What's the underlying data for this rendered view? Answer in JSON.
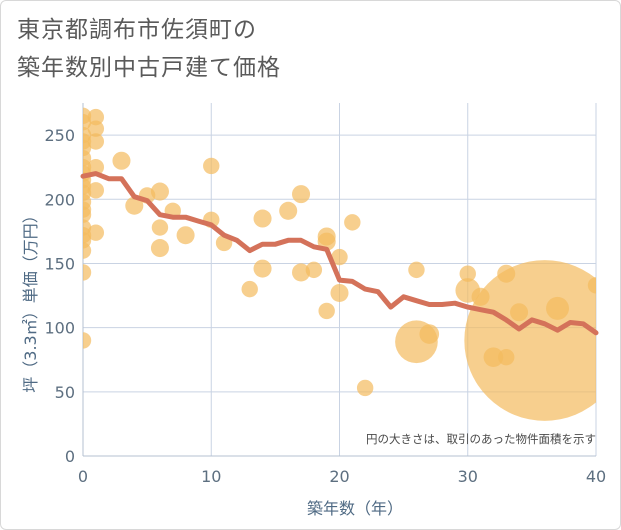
{
  "title_line1": "東京都調布市佐須町の",
  "title_line2": "築年数別中古戸建て価格",
  "chart_data": {
    "type": "scatter",
    "title": "東京都調布市佐須町の築年数別中古戸建て価格",
    "xlabel": "築年数（年）",
    "ylabel": "坪（3.3㎡）単価（万円）",
    "xlim": [
      0,
      40
    ],
    "ylim": [
      0,
      275
    ],
    "xticks": [
      0,
      10,
      20,
      30,
      40
    ],
    "yticks": [
      0,
      50,
      100,
      150,
      200,
      250
    ],
    "note": "円の大きさは、取引のあった物件面積を示す",
    "colors": {
      "bubble": "#f3bb5e",
      "line": "#d4725a",
      "grid": "#c9d3e3"
    },
    "scatter": [
      {
        "x": 0,
        "y": 265,
        "s": 1
      },
      {
        "x": 0,
        "y": 260,
        "s": 1
      },
      {
        "x": 0,
        "y": 250,
        "s": 1
      },
      {
        "x": 0,
        "y": 245,
        "s": 1
      },
      {
        "x": 0,
        "y": 240,
        "s": 1
      },
      {
        "x": 0,
        "y": 232,
        "s": 1
      },
      {
        "x": 0,
        "y": 225,
        "s": 1
      },
      {
        "x": 0,
        "y": 220,
        "s": 1
      },
      {
        "x": 0,
        "y": 215,
        "s": 1
      },
      {
        "x": 0,
        "y": 210,
        "s": 1
      },
      {
        "x": 0,
        "y": 205,
        "s": 1
      },
      {
        "x": 0,
        "y": 198,
        "s": 1
      },
      {
        "x": 0,
        "y": 192,
        "s": 1
      },
      {
        "x": 0,
        "y": 188,
        "s": 1
      },
      {
        "x": 0,
        "y": 178,
        "s": 1
      },
      {
        "x": 0,
        "y": 172,
        "s": 1
      },
      {
        "x": 0,
        "y": 168,
        "s": 1
      },
      {
        "x": 0,
        "y": 160,
        "s": 1
      },
      {
        "x": 0,
        "y": 143,
        "s": 1
      },
      {
        "x": 0,
        "y": 90,
        "s": 1
      },
      {
        "x": 1,
        "y": 264,
        "s": 1
      },
      {
        "x": 1,
        "y": 255,
        "s": 1
      },
      {
        "x": 1,
        "y": 245,
        "s": 1
      },
      {
        "x": 1,
        "y": 225,
        "s": 1
      },
      {
        "x": 1,
        "y": 207,
        "s": 1
      },
      {
        "x": 1,
        "y": 174,
        "s": 1
      },
      {
        "x": 3,
        "y": 230,
        "s": 1.1
      },
      {
        "x": 4,
        "y": 195,
        "s": 1.1
      },
      {
        "x": 5,
        "y": 203,
        "s": 1
      },
      {
        "x": 6,
        "y": 206,
        "s": 1.1
      },
      {
        "x": 6,
        "y": 178,
        "s": 1
      },
      {
        "x": 6,
        "y": 162,
        "s": 1.1
      },
      {
        "x": 7,
        "y": 191,
        "s": 1
      },
      {
        "x": 8,
        "y": 172,
        "s": 1.1
      },
      {
        "x": 10,
        "y": 226,
        "s": 1
      },
      {
        "x": 10,
        "y": 184,
        "s": 1
      },
      {
        "x": 11,
        "y": 166,
        "s": 1
      },
      {
        "x": 13,
        "y": 130,
        "s": 1
      },
      {
        "x": 14,
        "y": 185,
        "s": 1.1
      },
      {
        "x": 14,
        "y": 146,
        "s": 1.1
      },
      {
        "x": 16,
        "y": 191,
        "s": 1.1
      },
      {
        "x": 17,
        "y": 204,
        "s": 1.1
      },
      {
        "x": 17,
        "y": 143,
        "s": 1.1
      },
      {
        "x": 18,
        "y": 145,
        "s": 1
      },
      {
        "x": 19,
        "y": 171,
        "s": 1.1
      },
      {
        "x": 19,
        "y": 167,
        "s": 1.1
      },
      {
        "x": 19,
        "y": 113,
        "s": 1
      },
      {
        "x": 20,
        "y": 155,
        "s": 1
      },
      {
        "x": 20,
        "y": 127,
        "s": 1.1
      },
      {
        "x": 21,
        "y": 182,
        "s": 1
      },
      {
        "x": 22,
        "y": 53,
        "s": 1
      },
      {
        "x": 26,
        "y": 145,
        "s": 1
      },
      {
        "x": 26,
        "y": 89,
        "s": 2.6
      },
      {
        "x": 27,
        "y": 95,
        "s": 1.2
      },
      {
        "x": 30,
        "y": 142,
        "s": 1
      },
      {
        "x": 30,
        "y": 129,
        "s": 1.5
      },
      {
        "x": 31,
        "y": 124,
        "s": 1.1
      },
      {
        "x": 32,
        "y": 77,
        "s": 1.2
      },
      {
        "x": 33,
        "y": 142,
        "s": 1.1
      },
      {
        "x": 33,
        "y": 77,
        "s": 1
      },
      {
        "x": 34,
        "y": 112,
        "s": 1.1
      },
      {
        "x": 36,
        "y": 90,
        "s": 9.8
      },
      {
        "x": 37,
        "y": 115,
        "s": 1.4
      },
      {
        "x": 40,
        "y": 133,
        "s": 1
      }
    ],
    "line": {
      "x": [
        0,
        1,
        2,
        3,
        4,
        5,
        6,
        7,
        8,
        9,
        10,
        11,
        12,
        13,
        14,
        15,
        16,
        17,
        18,
        19,
        20,
        21,
        22,
        23,
        24,
        25,
        26,
        27,
        28,
        29,
        30,
        31,
        32,
        33,
        34,
        35,
        36,
        37,
        38,
        39,
        40
      ],
      "y": [
        218,
        220,
        216,
        216,
        202,
        199,
        188,
        186,
        186,
        183,
        180,
        172,
        168,
        160,
        165,
        165,
        168,
        168,
        163,
        161,
        137,
        136,
        130,
        128,
        116,
        124,
        121,
        118,
        118,
        119,
        116,
        114,
        112,
        106,
        99,
        106,
        103,
        98,
        104,
        103,
        96
      ]
    }
  }
}
